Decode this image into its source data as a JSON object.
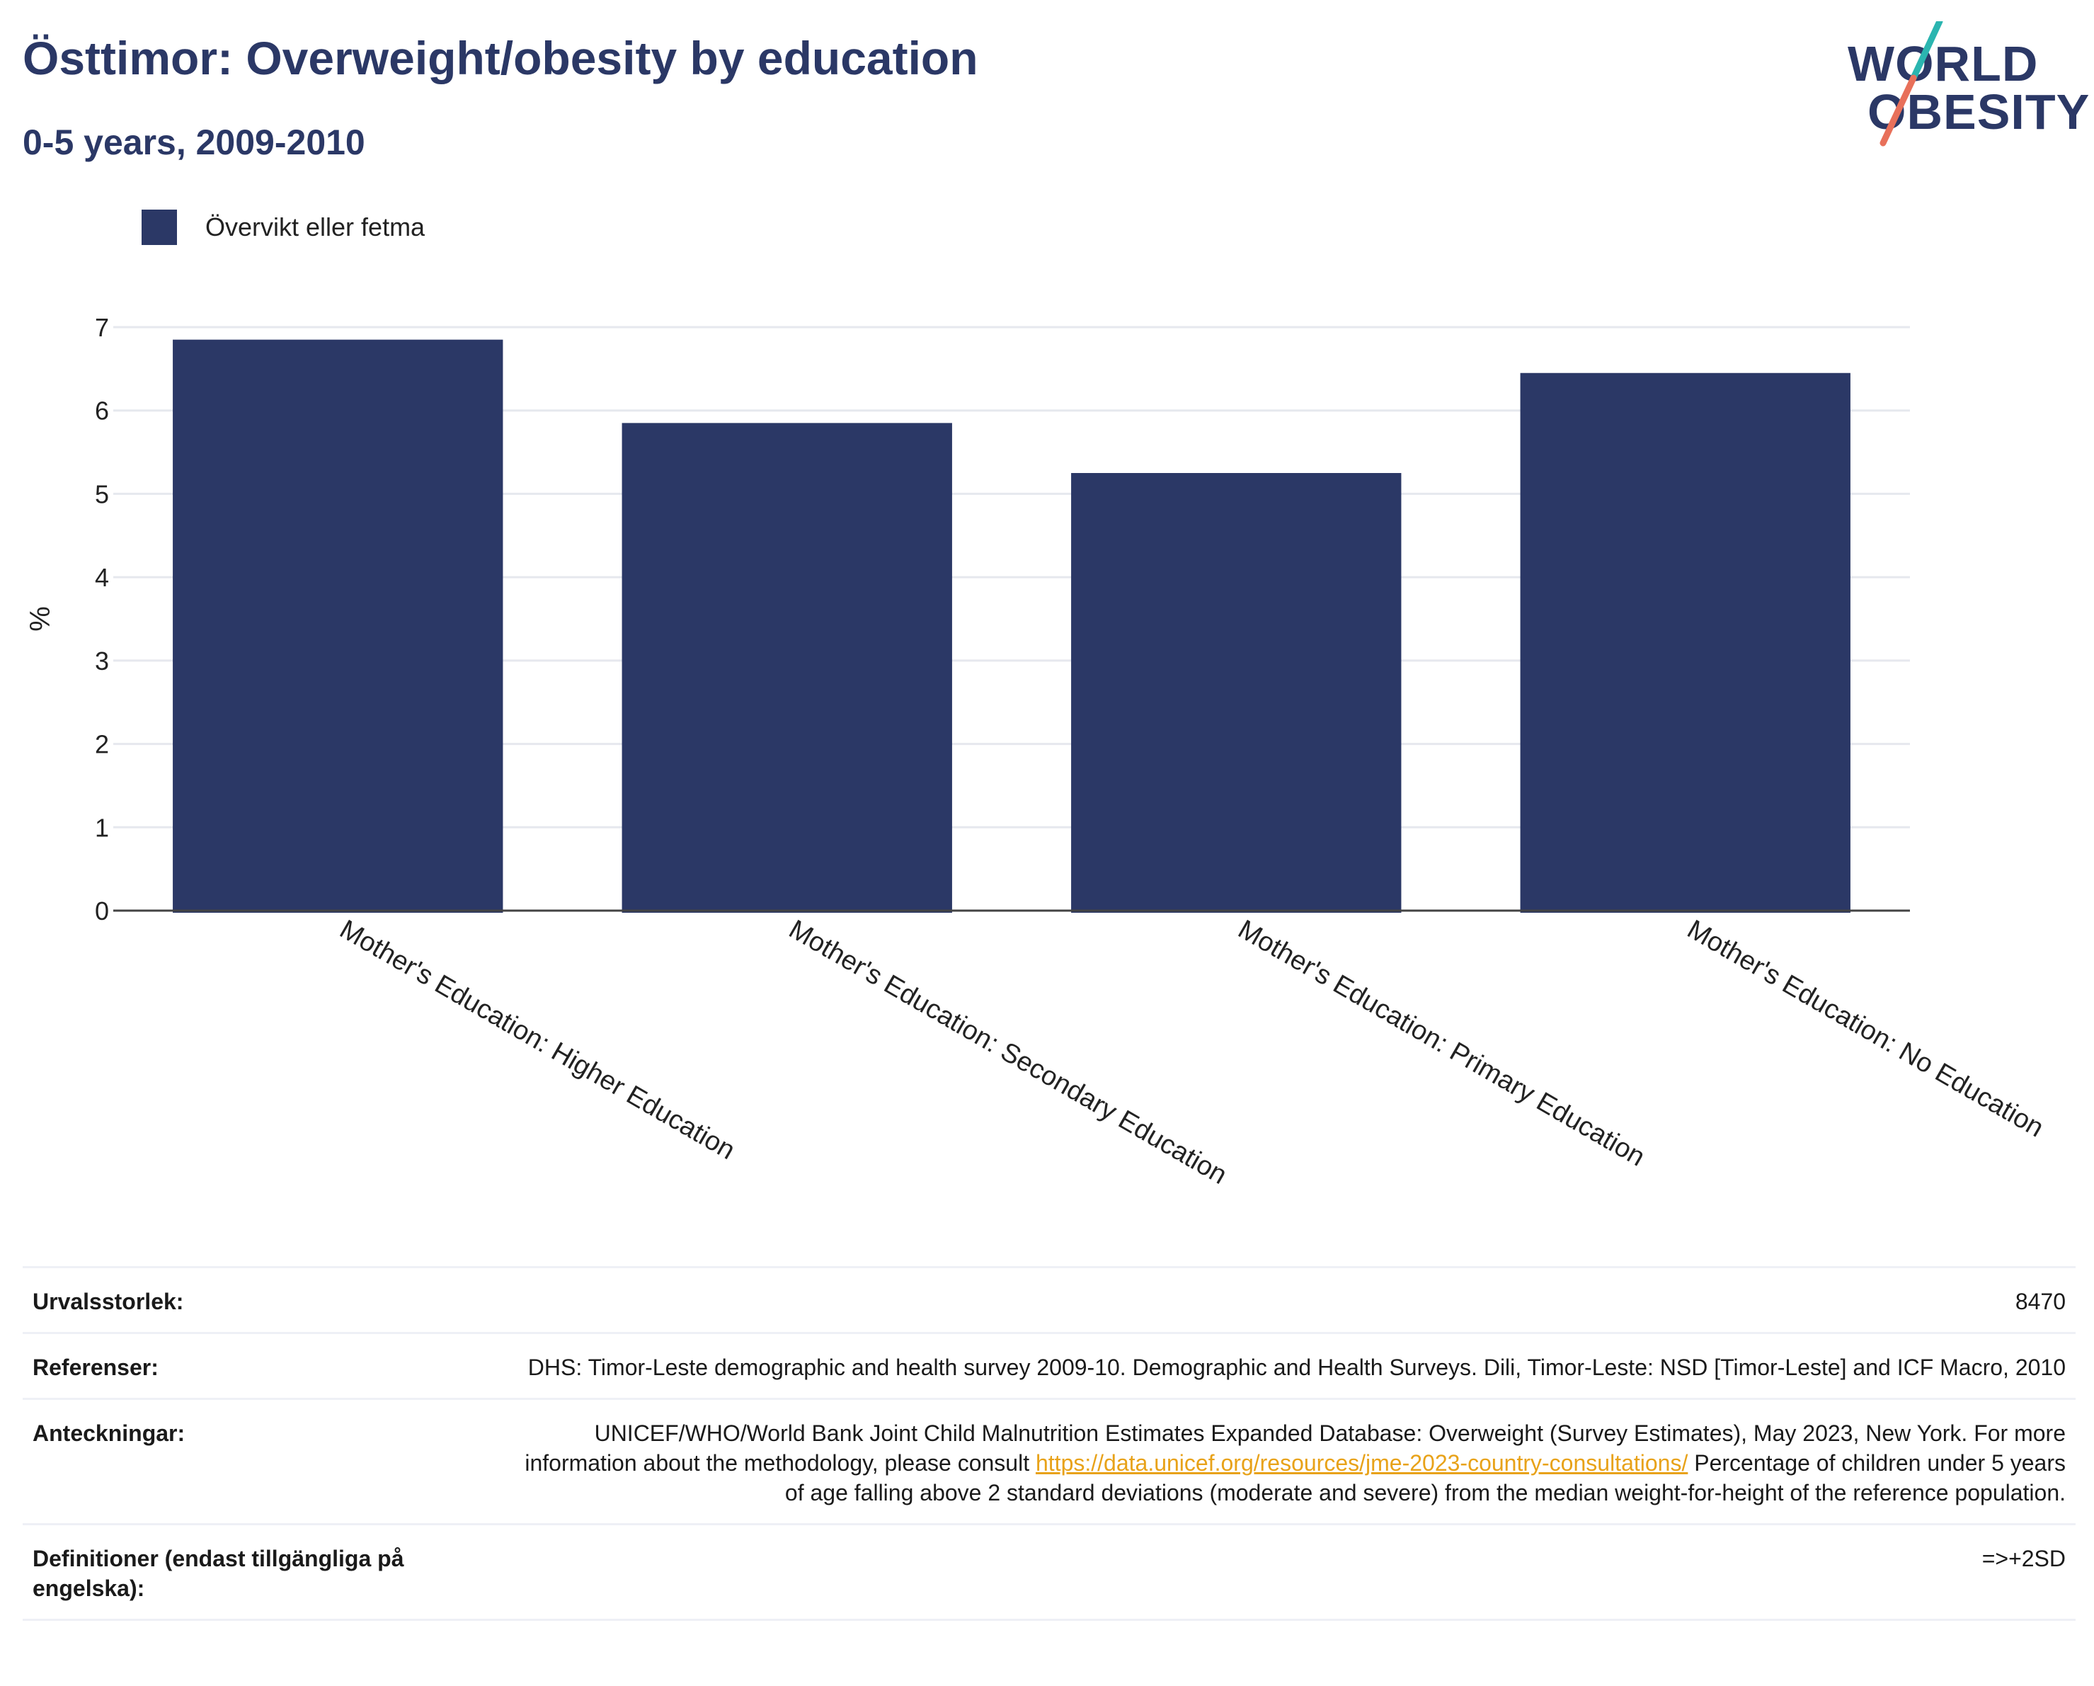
{
  "header": {
    "title": "Östtimor: Overweight/obesity by education",
    "subtitle": "0-5 years, 2009-2010"
  },
  "logo": {
    "line1": "WORLD",
    "line2": "OBESITY"
  },
  "chart_data": {
    "type": "bar",
    "categories": [
      "Mother's Education: Higher Education",
      "Mother's Education: Secondary Education",
      "Mother's Education: Primary Education",
      "Mother's Education: No Education"
    ],
    "series": [
      {
        "name": "Övervikt eller fetma",
        "values": [
          6.85,
          5.85,
          5.25,
          6.45
        ],
        "color": "#2b3866"
      }
    ],
    "ylabel": "%",
    "ylim": [
      0,
      7
    ],
    "yticks": [
      0,
      1,
      2,
      3,
      4,
      5,
      6,
      7
    ],
    "grid": true,
    "legend_position": "top-left"
  },
  "footer": {
    "rows": [
      {
        "key": "Urvalsstorlek:",
        "value": "8470"
      },
      {
        "key": "Referenser:",
        "value": "DHS: Timor-Leste demographic and health survey 2009-10. Demographic and Health Surveys. Dili, Timor-Leste: NSD [Timor-Leste] and ICF Macro, 2010"
      },
      {
        "key": "Anteckningar:",
        "value_before": "UNICEF/WHO/World Bank Joint Child Malnutrition Estimates Expanded Database: Overweight (Survey Estimates), May 2023, New York. For more information about the methodology, please consult ",
        "link": "https://data.unicef.org/resources/jme-2023-country-consultations/",
        "value_after": " Percentage of children under 5 years of age falling above 2 standard deviations (moderate and severe) from the median weight-for-height of the reference population."
      },
      {
        "key": "Definitioner (endast tillgängliga på engelska):",
        "value": "=>+2SD"
      }
    ]
  }
}
